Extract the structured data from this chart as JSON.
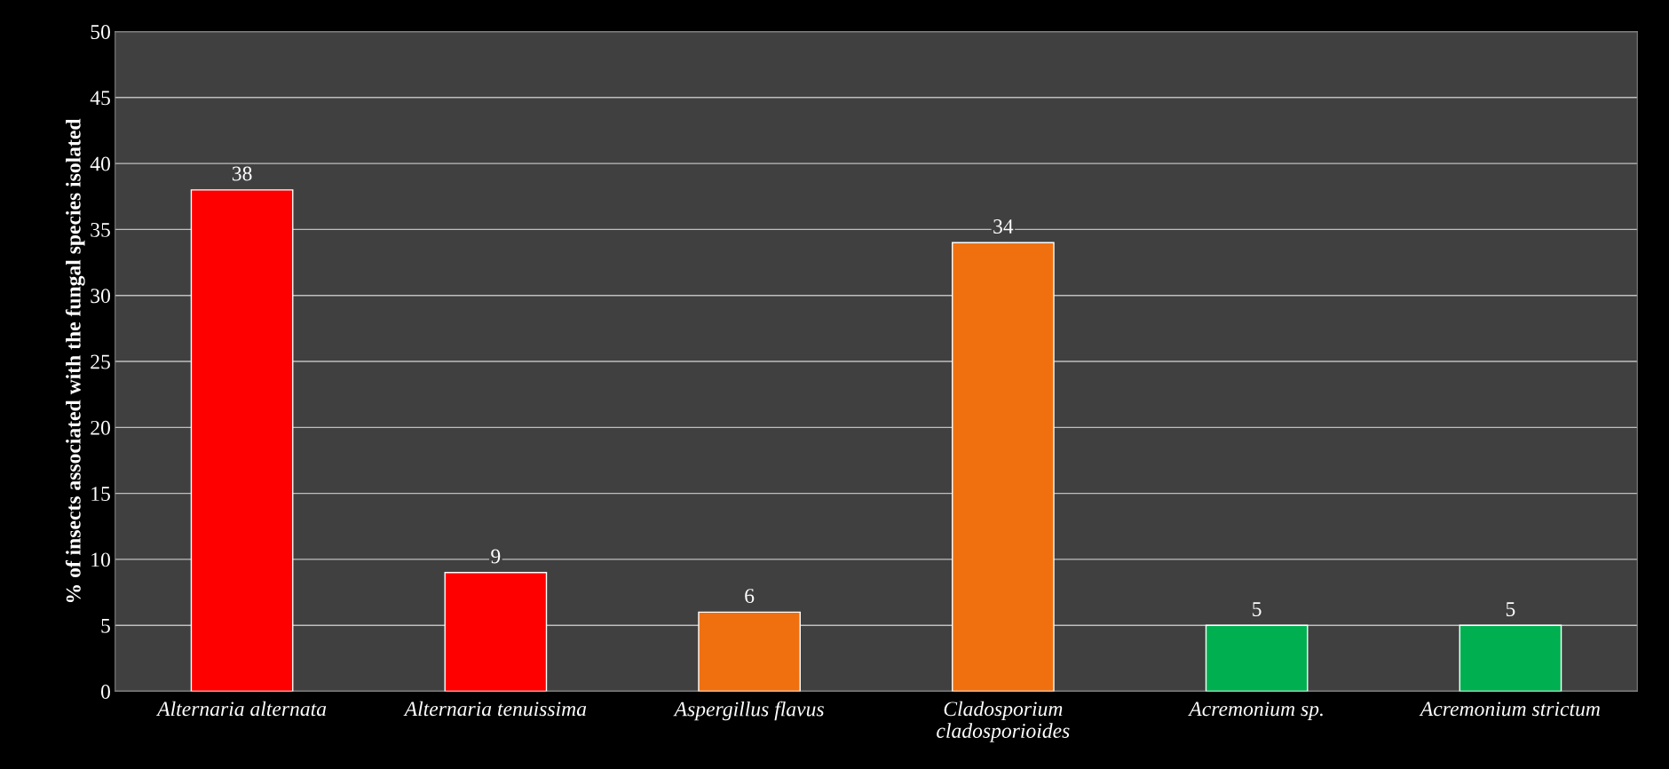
{
  "chart_data": {
    "type": "bar",
    "ylabel": "% of insects associated with the fungal species isolated",
    "categories": [
      "Alternaria alternata",
      "Alternaria tenuissima",
      "Aspergillus flavus",
      "Cladosporium\ncladosporioides",
      "Acremonium sp.",
      "Acremonium strictum"
    ],
    "values": [
      38,
      9,
      6,
      34,
      5,
      5
    ],
    "colors": [
      "#ff0000",
      "#ff0000",
      "#f07010",
      "#f07010",
      "#00b050",
      "#00b050"
    ],
    "ylim": [
      0,
      50
    ],
    "yticks": [
      0,
      5,
      10,
      15,
      20,
      25,
      30,
      35,
      40,
      45,
      50
    ],
    "grid": "y",
    "data_labels": true
  }
}
